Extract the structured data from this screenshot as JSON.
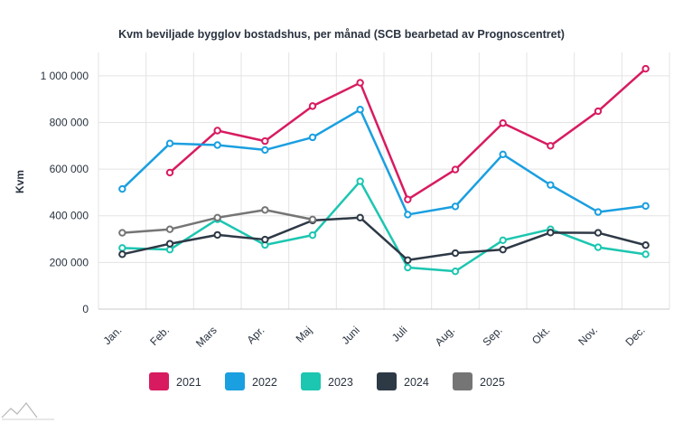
{
  "chart_data": {
    "type": "line",
    "title": "Kvm beviljade bygglov bostadshus, per månad (SCB bearbetad av Prognoscentret)",
    "ylabel": "Kvm",
    "xlabel": "",
    "categories": [
      "Jan.",
      "Feb.",
      "Mars",
      "Apr.",
      "Maj",
      "Juni",
      "Juli",
      "Aug.",
      "Sep.",
      "Okt.",
      "Nov.",
      "Dec."
    ],
    "ylim": [
      0,
      1100000
    ],
    "yticks": [
      0,
      200000,
      400000,
      600000,
      800000,
      1000000
    ],
    "ytick_labels": [
      "0",
      "200 000",
      "400 000",
      "600 000",
      "800 000",
      "1 000 000"
    ],
    "grid": true,
    "legend_position": "bottom",
    "series": [
      {
        "name": "2021",
        "color": "#d81b60",
        "values": [
          null,
          585000,
          765000,
          720000,
          870000,
          970000,
          470000,
          598000,
          797000,
          700000,
          848000,
          1030000
        ]
      },
      {
        "name": "2022",
        "color": "#1a9fe0",
        "values": [
          515000,
          710000,
          703000,
          682000,
          736000,
          855000,
          405000,
          440000,
          663000,
          532000,
          416000,
          442000
        ]
      },
      {
        "name": "2023",
        "color": "#1cc6b0",
        "values": [
          262000,
          255000,
          385000,
          275000,
          317000,
          548000,
          178000,
          162000,
          295000,
          342000,
          265000,
          235000
        ]
      },
      {
        "name": "2024",
        "color": "#2e3946",
        "values": [
          235000,
          280000,
          318000,
          298000,
          380000,
          392000,
          210000,
          240000,
          255000,
          328000,
          327000,
          274000
        ]
      },
      {
        "name": "2025",
        "color": "#757575",
        "values": [
          327000,
          342000,
          392000,
          425000,
          384000,
          null,
          null,
          null,
          null,
          null,
          null,
          null
        ]
      }
    ]
  }
}
